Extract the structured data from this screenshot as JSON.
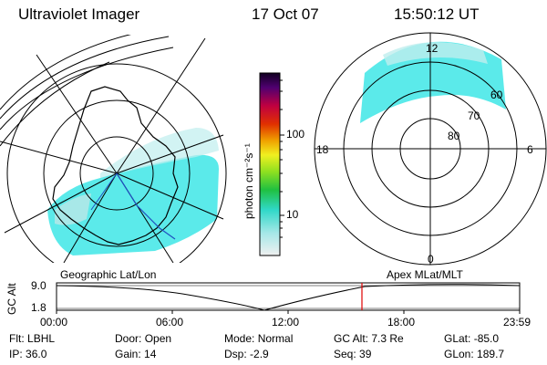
{
  "header": {
    "title": "Ultraviolet Imager",
    "date": "17 Oct 07",
    "time": "15:50:12 UT"
  },
  "colorbar": {
    "label": "photon cm⁻²s⁻¹",
    "ticks": [
      "100",
      "10"
    ]
  },
  "polar_plot": {
    "mlt_labels": [
      "12",
      "18",
      "6",
      "0"
    ],
    "lat_labels": [
      "60",
      "70",
      "80"
    ]
  },
  "projections": {
    "left": "Geographic Lat/Lon",
    "right": "Apex MLat/MLT"
  },
  "altitude_plot": {
    "ylabel": "GC Alt",
    "yticks": [
      "9.0",
      "1.8"
    ],
    "xticks": [
      "00:00",
      "06:00",
      "12:00",
      "18:00",
      "23:59"
    ]
  },
  "info": {
    "row1": [
      {
        "k": "Flt:",
        "v": "LBHL"
      },
      {
        "k": "Door:",
        "v": "Open"
      },
      {
        "k": "Mode:",
        "v": "Normal"
      },
      {
        "k": "GC Alt:",
        "v": "7.3 Re"
      },
      {
        "k": "GLat:",
        "v": "-85.0"
      }
    ],
    "row2": [
      {
        "k": "IP:",
        "v": "36.0"
      },
      {
        "k": "Gain:",
        "v": "14"
      },
      {
        "k": "Dsp:",
        "v": "-2.9"
      },
      {
        "k": "Seq:",
        "v": "39"
      },
      {
        "k": "GLon:",
        "v": "189.7"
      }
    ]
  },
  "colors": {
    "aurora": "#3ee6e6",
    "marker": "#e00000",
    "track": "#2050c0"
  }
}
